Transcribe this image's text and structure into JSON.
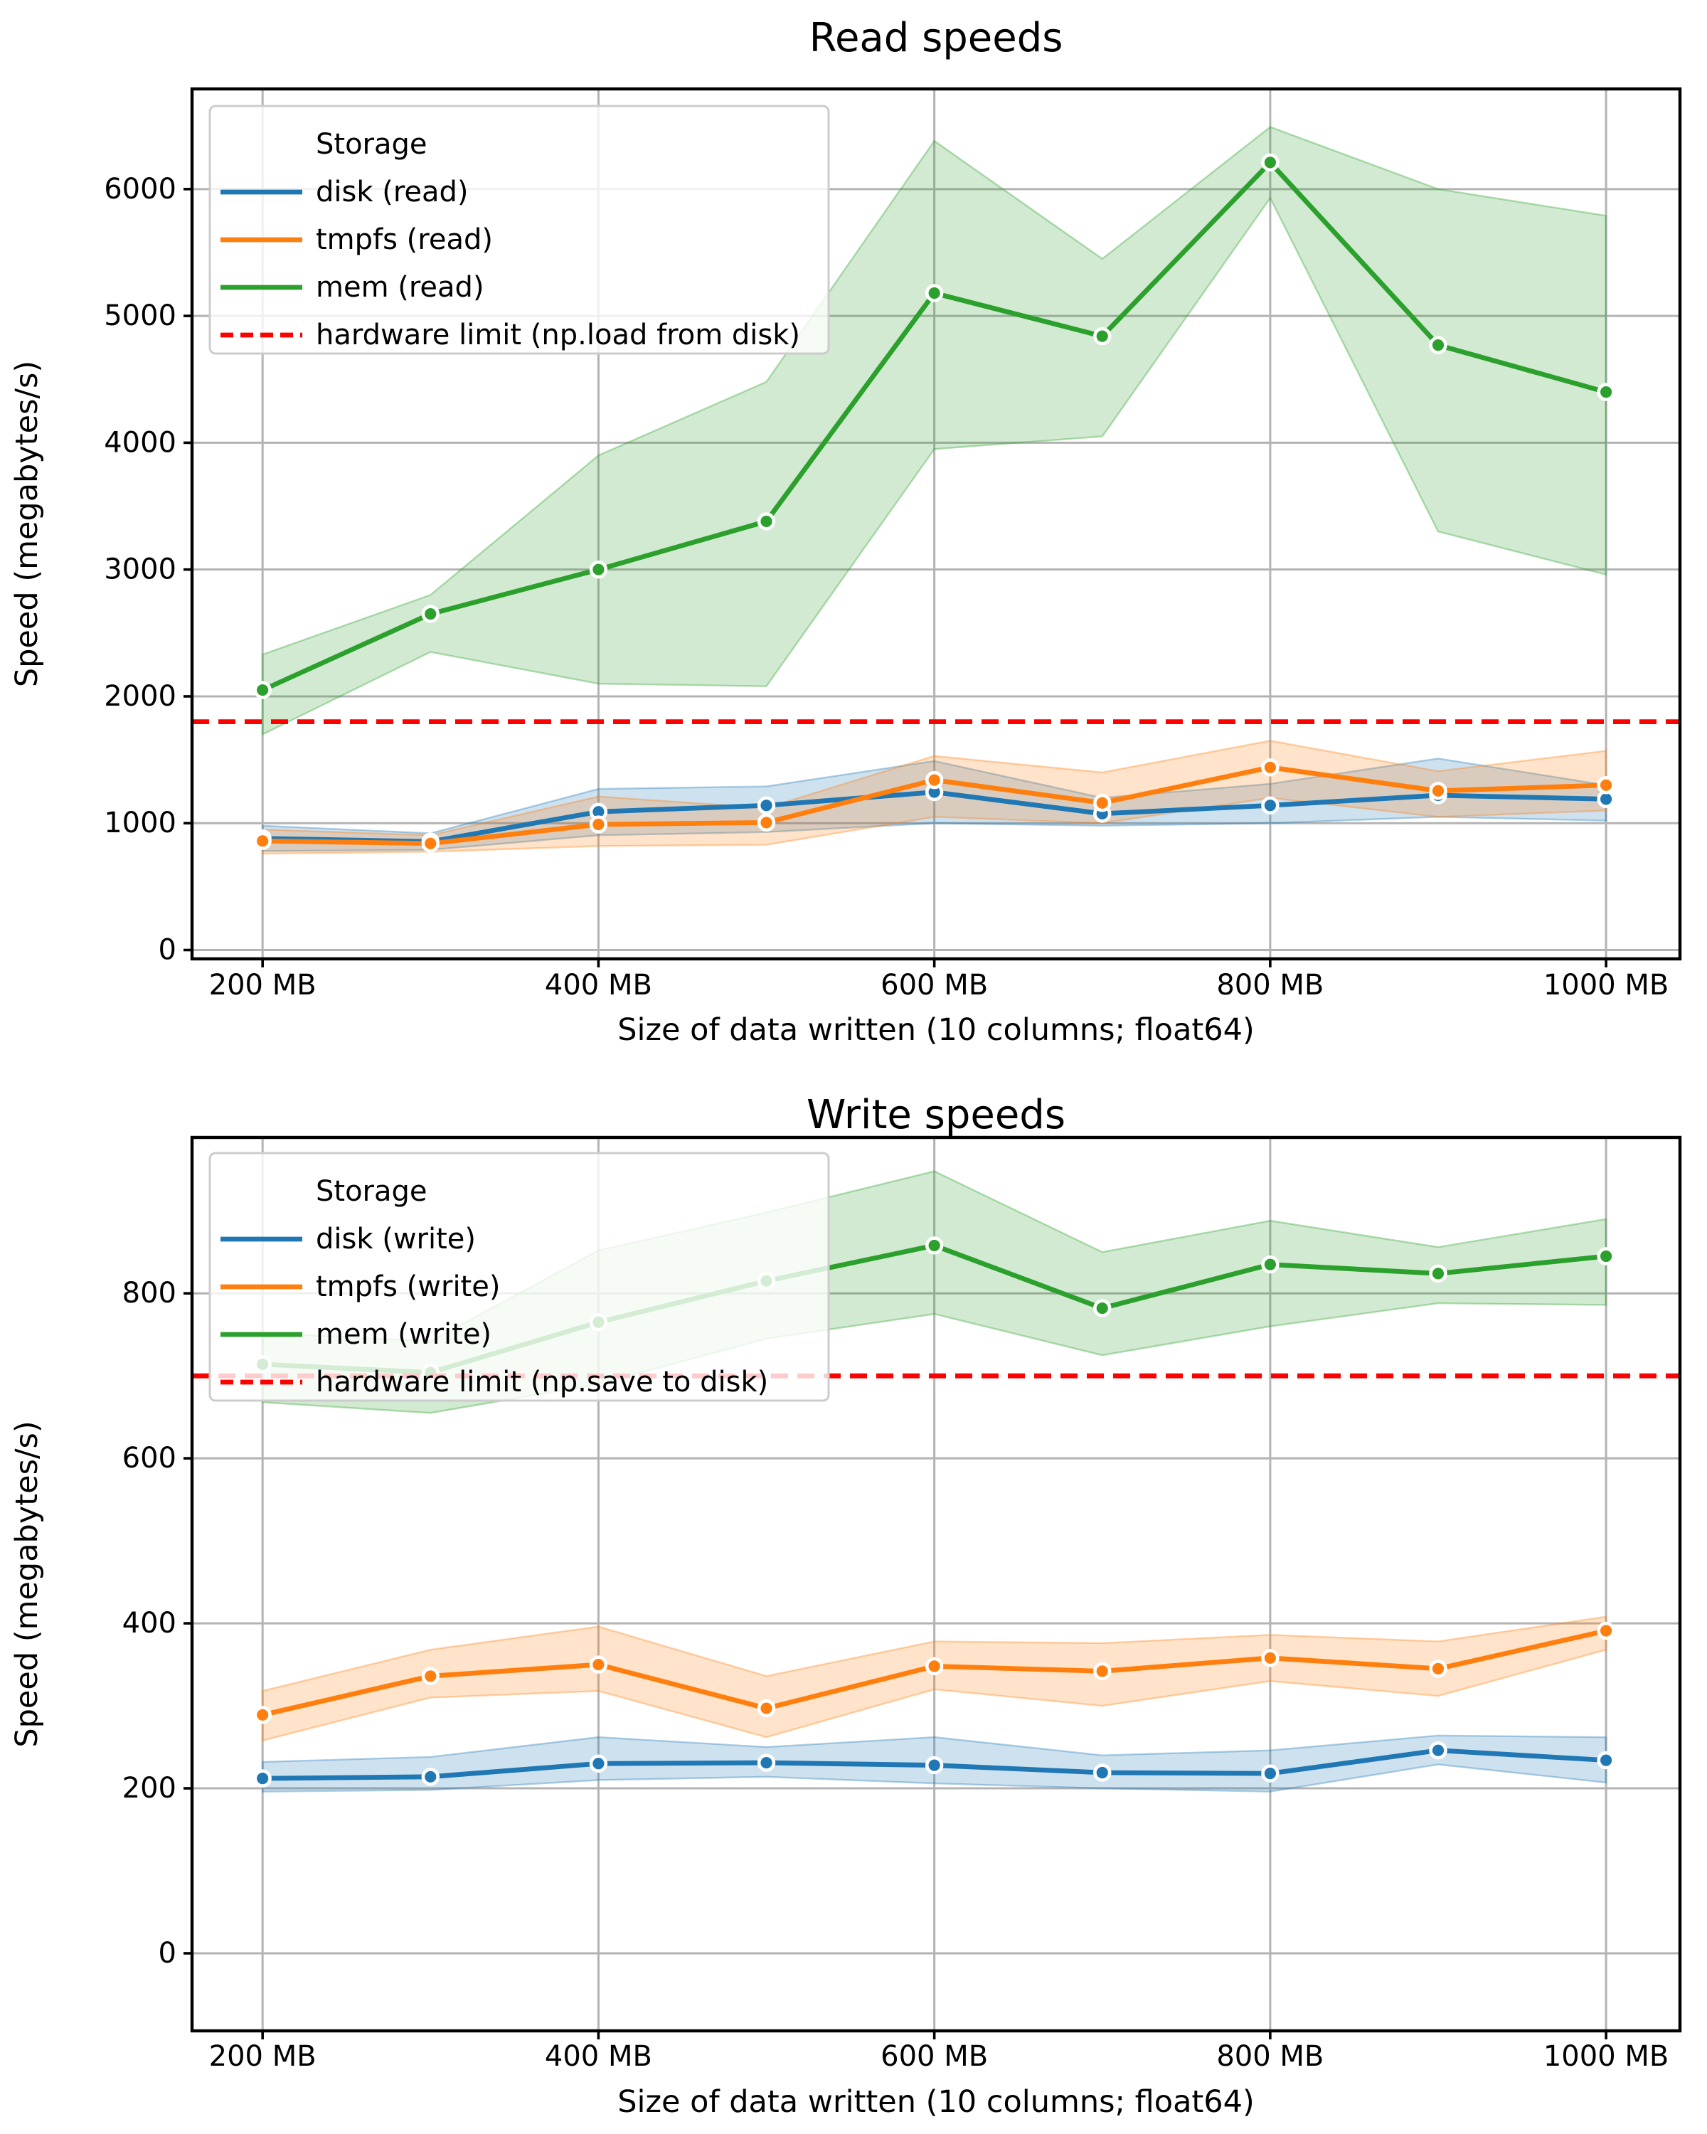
{
  "figure": {
    "background": "#ffffff"
  },
  "colors": {
    "disk": "#1f77b4",
    "tmpfs": "#ff7f0e",
    "mem": "#2ca02c",
    "limit": "#ff0000",
    "grid": "#b3b3b3",
    "spine": "#000000",
    "text": "#000000",
    "legend_border": "#cccccc",
    "marker_edge": "#ffffff"
  },
  "chart_data": [
    {
      "type": "line",
      "title": "Read speeds",
      "xlabel": "Size of data written (10 columns; float64)",
      "ylabel": "Speed (megabytes/s)",
      "legend_title": "Storage",
      "legend_position": "upper left",
      "grid": true,
      "x": [
        200,
        300,
        400,
        500,
        600,
        700,
        800,
        900,
        1000
      ],
      "x_tick_values": [
        200,
        400,
        600,
        800,
        1000
      ],
      "x_tick_labels": [
        "200 MB",
        "400 MB",
        "600 MB",
        "800 MB",
        "1000 MB"
      ],
      "y_tick_values": [
        0,
        1000,
        2000,
        3000,
        4000,
        5000,
        6000
      ],
      "y_tick_labels": [
        "0",
        "1000",
        "2000",
        "3000",
        "4000",
        "5000",
        "6000"
      ],
      "xlim": [
        158,
        1044
      ],
      "ylim": [
        -70,
        6790
      ],
      "series": [
        {
          "name": "disk (read)",
          "color_key": "disk",
          "values": [
            880,
            855,
            1090,
            1140,
            1245,
            1075,
            1140,
            1220,
            1190
          ],
          "band_low": [
            780,
            790,
            905,
            930,
            1000,
            980,
            1000,
            1050,
            1020
          ],
          "band_high": [
            980,
            920,
            1270,
            1290,
            1490,
            1200,
            1310,
            1510,
            1300
          ]
        },
        {
          "name": "tmpfs (read)",
          "color_key": "tmpfs",
          "values": [
            860,
            840,
            990,
            1005,
            1340,
            1160,
            1440,
            1255,
            1300
          ],
          "band_low": [
            760,
            775,
            820,
            830,
            1050,
            1000,
            1200,
            1050,
            1100
          ],
          "band_high": [
            950,
            905,
            1210,
            1120,
            1530,
            1400,
            1650,
            1410,
            1570
          ]
        },
        {
          "name": "mem (read)",
          "color_key": "mem",
          "values": [
            2050,
            2650,
            3000,
            3380,
            5180,
            4840,
            6210,
            4770,
            4400
          ],
          "band_low": [
            1700,
            2350,
            2100,
            2080,
            3950,
            4050,
            5930,
            3300,
            2960
          ],
          "band_high": [
            2330,
            2800,
            3900,
            4480,
            6380,
            5450,
            6490,
            6000,
            5790
          ]
        }
      ],
      "limit_line": {
        "name": "hardware limit (np.load from disk)",
        "value": 1800
      }
    },
    {
      "type": "line",
      "title": "Write speeds",
      "xlabel": "Size of data written (10 columns; float64)",
      "ylabel": "Speed (megabytes/s)",
      "legend_title": "Storage",
      "legend_position": "upper left",
      "grid": true,
      "x": [
        200,
        300,
        400,
        500,
        600,
        700,
        800,
        900,
        1000
      ],
      "x_tick_values": [
        200,
        400,
        600,
        800,
        1000
      ],
      "x_tick_labels": [
        "200 MB",
        "400 MB",
        "600 MB",
        "800 MB",
        "1000 MB"
      ],
      "y_tick_values": [
        0,
        200,
        400,
        600,
        800
      ],
      "y_tick_labels": [
        "0",
        "200",
        "400",
        "600",
        "800"
      ],
      "xlim": [
        158,
        1044
      ],
      "ylim": [
        -94,
        989
      ],
      "series": [
        {
          "name": "disk (write)",
          "color_key": "disk",
          "values": [
            212,
            214,
            230,
            231,
            228,
            219,
            218,
            246,
            234
          ],
          "band_low": [
            196,
            198,
            210,
            214,
            206,
            200,
            196,
            229,
            207
          ],
          "band_high": [
            232,
            238,
            262,
            250,
            262,
            240,
            246,
            264,
            262
          ]
        },
        {
          "name": "tmpfs (write)",
          "color_key": "tmpfs",
          "values": [
            289,
            336,
            350,
            297,
            348,
            342,
            358,
            345,
            391
          ],
          "band_low": [
            258,
            310,
            318,
            262,
            320,
            300,
            330,
            312,
            368
          ],
          "band_high": [
            318,
            368,
            396,
            336,
            378,
            376,
            386,
            378,
            408
          ]
        },
        {
          "name": "mem (write)",
          "color_key": "mem",
          "values": [
            714,
            704,
            765,
            815,
            858,
            782,
            835,
            824,
            845
          ],
          "band_low": [
            668,
            655,
            690,
            745,
            775,
            725,
            760,
            788,
            786
          ],
          "band_high": [
            752,
            742,
            852,
            898,
            948,
            850,
            888,
            856,
            890
          ]
        }
      ],
      "limit_line": {
        "name": "hardware limit (np.save to disk)",
        "value": 700
      }
    }
  ]
}
